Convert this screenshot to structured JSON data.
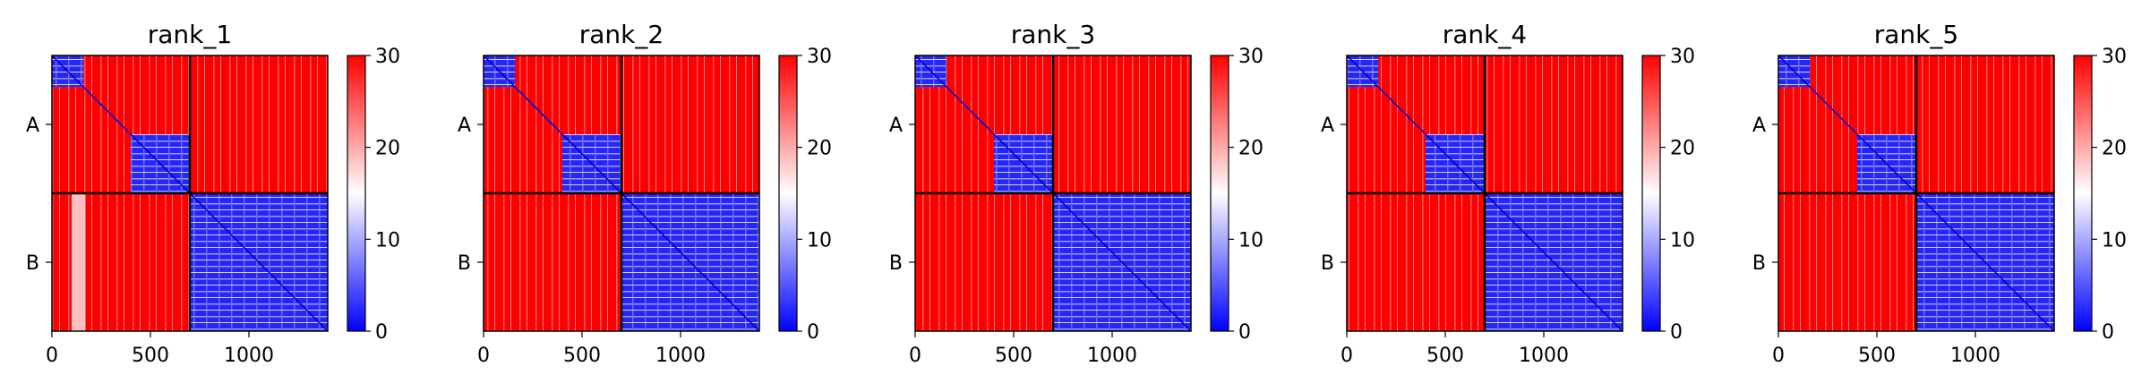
{
  "chart_data": [
    {
      "type": "heatmap",
      "title": "rank_1",
      "x_ticks": [
        0,
        500,
        1000
      ],
      "y_ticks": [
        "A",
        "B"
      ],
      "xlim": [
        0,
        1400
      ],
      "color_range": [
        0,
        30
      ],
      "colorbar_ticks": [
        0,
        10,
        20,
        30
      ],
      "colormap": "bwr",
      "chains": [
        "A",
        "B"
      ],
      "chain_lengths": [
        700,
        700
      ],
      "split": 700,
      "a_domains": [
        [
          0,
          160
        ],
        [
          400,
          700
        ]
      ],
      "b_columns_low": [
        [
          100,
          170
        ]
      ]
    },
    {
      "type": "heatmap",
      "title": "rank_2",
      "x_ticks": [
        0,
        500,
        1000
      ],
      "y_ticks": [
        "A",
        "B"
      ],
      "xlim": [
        0,
        1400
      ],
      "color_range": [
        0,
        30
      ],
      "colorbar_ticks": [
        0,
        10,
        20,
        30
      ],
      "colormap": "bwr",
      "chains": [
        "A",
        "B"
      ],
      "chain_lengths": [
        700,
        700
      ],
      "split": 700,
      "a_domains": [
        [
          0,
          160
        ],
        [
          400,
          700
        ]
      ],
      "b_columns_low": []
    },
    {
      "type": "heatmap",
      "title": "rank_3",
      "x_ticks": [
        0,
        500,
        1000
      ],
      "y_ticks": [
        "A",
        "B"
      ],
      "xlim": [
        0,
        1400
      ],
      "color_range": [
        0,
        30
      ],
      "colorbar_ticks": [
        0,
        10,
        20,
        30
      ],
      "colormap": "bwr",
      "chains": [
        "A",
        "B"
      ],
      "chain_lengths": [
        700,
        700
      ],
      "split": 700,
      "a_domains": [
        [
          0,
          160
        ],
        [
          400,
          700
        ]
      ],
      "b_columns_low": []
    },
    {
      "type": "heatmap",
      "title": "rank_4",
      "x_ticks": [
        0,
        500,
        1000
      ],
      "y_ticks": [
        "A",
        "B"
      ],
      "xlim": [
        0,
        1400
      ],
      "color_range": [
        0,
        30
      ],
      "colorbar_ticks": [
        0,
        10,
        20,
        30
      ],
      "colormap": "bwr",
      "chains": [
        "A",
        "B"
      ],
      "chain_lengths": [
        700,
        700
      ],
      "split": 700,
      "a_domains": [
        [
          0,
          160
        ],
        [
          400,
          700
        ]
      ],
      "b_columns_low": []
    },
    {
      "type": "heatmap",
      "title": "rank_5",
      "x_ticks": [
        0,
        500,
        1000
      ],
      "y_ticks": [
        "A",
        "B"
      ],
      "xlim": [
        0,
        1400
      ],
      "color_range": [
        0,
        30
      ],
      "colorbar_ticks": [
        0,
        10,
        20,
        30
      ],
      "colormap": "bwr",
      "chains": [
        "A",
        "B"
      ],
      "chain_lengths": [
        700,
        700
      ],
      "split": 700,
      "a_domains": [
        [
          0,
          160
        ],
        [
          400,
          700
        ]
      ],
      "b_columns_low": []
    }
  ]
}
